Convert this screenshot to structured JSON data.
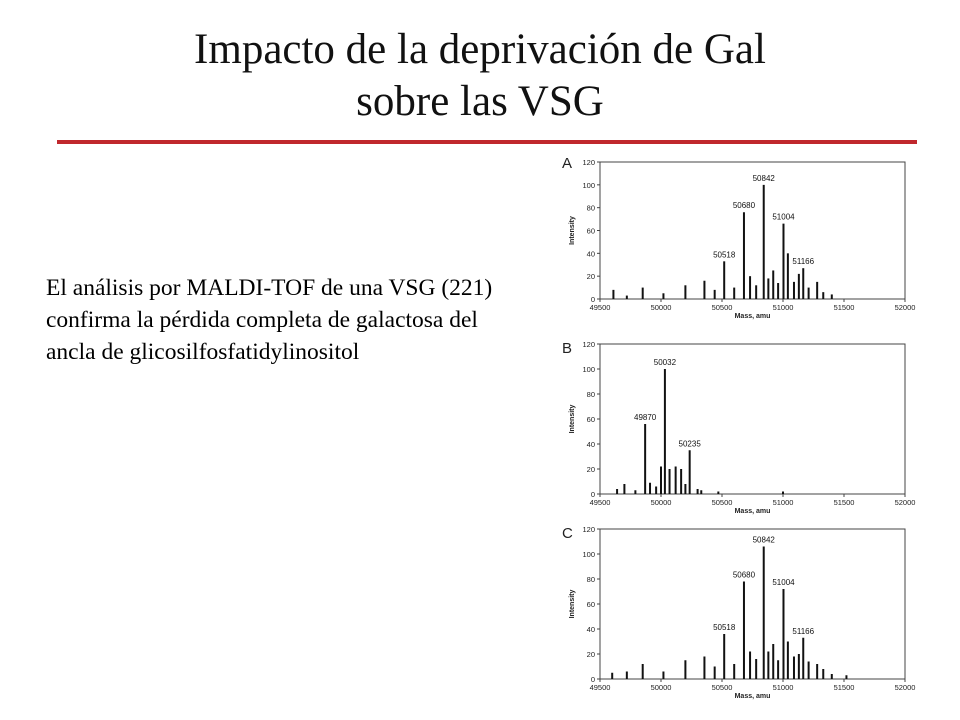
{
  "slide": {
    "title_line1": "Impacto de la deprivación de Gal",
    "title_line2": "sobre las VSG",
    "accent_color": "#c0282d",
    "body_text": "El análisis por MALDI-TOF de una VSG (221) confirma la pérdida completa de galactosa del ancla de glicosilfosfatidylinositol"
  },
  "chart_data": [
    {
      "type": "bar",
      "panel_label": "A",
      "xlabel": "Mass, amu",
      "ylabel": "Intensity",
      "xlim": [
        49500,
        52000
      ],
      "ylim": [
        0,
        120
      ],
      "xticks": [
        "49500",
        "50000",
        "50500",
        "51000",
        "51500",
        "52000"
      ],
      "yticks": [
        "0",
        "20",
        "40",
        "60",
        "80",
        "100",
        "120"
      ],
      "peaks": [
        {
          "x": 49610,
          "y": 8
        },
        {
          "x": 49720,
          "y": 3
        },
        {
          "x": 49850,
          "y": 10
        },
        {
          "x": 50020,
          "y": 5
        },
        {
          "x": 50200,
          "y": 12
        },
        {
          "x": 50356,
          "y": 16
        },
        {
          "x": 50440,
          "y": 8
        },
        {
          "x": 50518,
          "y": 33,
          "label": "50518"
        },
        {
          "x": 50600,
          "y": 10
        },
        {
          "x": 50680,
          "y": 76,
          "label": "50680"
        },
        {
          "x": 50730,
          "y": 20
        },
        {
          "x": 50780,
          "y": 12
        },
        {
          "x": 50842,
          "y": 100,
          "label": "50842"
        },
        {
          "x": 50880,
          "y": 18
        },
        {
          "x": 50920,
          "y": 25
        },
        {
          "x": 50960,
          "y": 14
        },
        {
          "x": 51004,
          "y": 66,
          "label": "51004"
        },
        {
          "x": 51040,
          "y": 40
        },
        {
          "x": 51090,
          "y": 15
        },
        {
          "x": 51130,
          "y": 22
        },
        {
          "x": 51166,
          "y": 27,
          "label": "51166"
        },
        {
          "x": 51210,
          "y": 10
        },
        {
          "x": 51280,
          "y": 15
        },
        {
          "x": 51330,
          "y": 6
        },
        {
          "x": 51400,
          "y": 4
        }
      ]
    },
    {
      "type": "bar",
      "panel_label": "B",
      "xlabel": "Mass, amu",
      "ylabel": "Intensity",
      "xlim": [
        49500,
        52000
      ],
      "ylim": [
        0,
        120
      ],
      "xticks": [
        "49500",
        "50000",
        "50500",
        "51000",
        "51500",
        "52000"
      ],
      "yticks": [
        "0",
        "20",
        "40",
        "60",
        "80",
        "100",
        "120"
      ],
      "peaks": [
        {
          "x": 49640,
          "y": 4
        },
        {
          "x": 49700,
          "y": 8
        },
        {
          "x": 49790,
          "y": 3
        },
        {
          "x": 49870,
          "y": 56,
          "label": "49870"
        },
        {
          "x": 49910,
          "y": 9
        },
        {
          "x": 49960,
          "y": 6
        },
        {
          "x": 50000,
          "y": 22
        },
        {
          "x": 50032,
          "y": 100,
          "label": "50032"
        },
        {
          "x": 50070,
          "y": 20
        },
        {
          "x": 50120,
          "y": 22
        },
        {
          "x": 50165,
          "y": 20
        },
        {
          "x": 50200,
          "y": 8
        },
        {
          "x": 50235,
          "y": 35,
          "label": "50235"
        },
        {
          "x": 50300,
          "y": 4
        },
        {
          "x": 50330,
          "y": 3
        },
        {
          "x": 50470,
          "y": 2
        },
        {
          "x": 51000,
          "y": 2
        }
      ]
    },
    {
      "type": "bar",
      "panel_label": "C",
      "xlabel": "Mass, amu",
      "ylabel": "Intensity",
      "xlim": [
        49500,
        52000
      ],
      "ylim": [
        0,
        120
      ],
      "xticks": [
        "49500",
        "50000",
        "50500",
        "51000",
        "51500",
        "52000"
      ],
      "yticks": [
        "0",
        "20",
        "40",
        "60",
        "80",
        "100",
        "120"
      ],
      "peaks": [
        {
          "x": 49600,
          "y": 5
        },
        {
          "x": 49720,
          "y": 6
        },
        {
          "x": 49850,
          "y": 12
        },
        {
          "x": 50020,
          "y": 6
        },
        {
          "x": 50200,
          "y": 15
        },
        {
          "x": 50356,
          "y": 18
        },
        {
          "x": 50440,
          "y": 10
        },
        {
          "x": 50518,
          "y": 36,
          "label": "50518"
        },
        {
          "x": 50600,
          "y": 12
        },
        {
          "x": 50680,
          "y": 78,
          "label": "50680"
        },
        {
          "x": 50730,
          "y": 22
        },
        {
          "x": 50780,
          "y": 16
        },
        {
          "x": 50842,
          "y": 106,
          "label": "50842"
        },
        {
          "x": 50880,
          "y": 22
        },
        {
          "x": 50920,
          "y": 28
        },
        {
          "x": 50960,
          "y": 15
        },
        {
          "x": 51004,
          "y": 72,
          "label": "51004"
        },
        {
          "x": 51040,
          "y": 30
        },
        {
          "x": 51090,
          "y": 18
        },
        {
          "x": 51130,
          "y": 20
        },
        {
          "x": 51166,
          "y": 33,
          "label": "51166"
        },
        {
          "x": 51210,
          "y": 14
        },
        {
          "x": 51280,
          "y": 12
        },
        {
          "x": 51330,
          "y": 8
        },
        {
          "x": 51400,
          "y": 4
        },
        {
          "x": 51520,
          "y": 3
        }
      ]
    }
  ]
}
